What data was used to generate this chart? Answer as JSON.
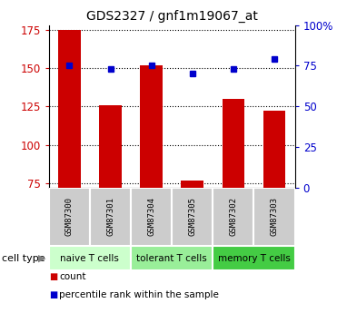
{
  "title": "GDS2327 / gnf1m19067_at",
  "samples": [
    "GSM87300",
    "GSM87301",
    "GSM87304",
    "GSM87305",
    "GSM87302",
    "GSM87303"
  ],
  "counts": [
    175,
    126,
    152,
    77,
    130,
    122
  ],
  "percentile_ranks": [
    75,
    73,
    75,
    70,
    73,
    79
  ],
  "ylim_left": [
    72,
    178
  ],
  "ylim_right": [
    0,
    100
  ],
  "yticks_left": [
    75,
    100,
    125,
    150,
    175
  ],
  "yticks_right": [
    0,
    25,
    50,
    75,
    100
  ],
  "ytick_labels_right": [
    "0",
    "25",
    "50",
    "75",
    "100%"
  ],
  "cell_types": [
    {
      "label": "naive T cells",
      "samples": [
        0,
        1
      ],
      "color": "#ccffcc"
    },
    {
      "label": "tolerant T cells",
      "samples": [
        2,
        3
      ],
      "color": "#99ee99"
    },
    {
      "label": "memory T cells",
      "samples": [
        4,
        5
      ],
      "color": "#44cc44"
    }
  ],
  "bar_color": "#cc0000",
  "dot_color": "#0000cc",
  "bar_width": 0.55,
  "bg_color": "#ffffff",
  "left_tick_color": "#cc0000",
  "right_tick_color": "#0000cc",
  "cell_type_label": "cell type",
  "legend_count_label": "count",
  "legend_pct_label": "percentile rank within the sample",
  "sample_box_color": "#cccccc",
  "cell_type_colors": [
    "#ccffcc",
    "#99ee99",
    "#44cc44"
  ]
}
